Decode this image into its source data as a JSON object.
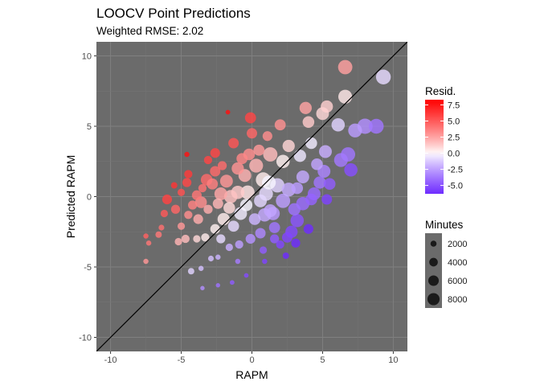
{
  "chart_data": {
    "type": "scatter",
    "title": "LOOCV Point Predictions",
    "subtitle": "Weighted RMSE: 2.02",
    "xlabel": "RAPM",
    "ylabel": "Predicted RAPM",
    "xlim": [
      -11,
      11
    ],
    "ylim": [
      -11,
      11
    ],
    "x_ticks": [
      -10,
      -5,
      0,
      5,
      10
    ],
    "y_ticks": [
      -10,
      -5,
      0,
      5,
      10
    ],
    "grid": true,
    "reference_line": "y = x",
    "panel_background": "#6b6b6b",
    "legend_position": "right",
    "color_legend": {
      "title": "Resid.",
      "ticks": [
        7.5,
        5.0,
        2.5,
        0.0,
        -2.5,
        -5.0
      ],
      "tick_labels": [
        "7.5",
        "5.0",
        "2.5",
        "0.0",
        "-2.5",
        "-5.0"
      ],
      "range": [
        -6.3,
        8.3
      ],
      "low_color": "#6f2cff",
      "mid_color": "#ffffff",
      "high_color": "#ff0000"
    },
    "size_legend": {
      "title": "Minutes",
      "values": [
        2000,
        4000,
        6000,
        8000
      ],
      "labels": [
        "2000",
        "4000",
        "6000",
        "8000"
      ]
    },
    "points": [
      {
        "x": 9.3,
        "y": 8.5,
        "minutes": 8000
      },
      {
        "x": 6.6,
        "y": 9.2,
        "minutes": 7500
      },
      {
        "x": 6.6,
        "y": 7.1,
        "minutes": 7000
      },
      {
        "x": 5.3,
        "y": 6.4,
        "minutes": 5500
      },
      {
        "x": 5.0,
        "y": 5.9,
        "minutes": 6000
      },
      {
        "x": 3.8,
        "y": 6.3,
        "minutes": 5500
      },
      {
        "x": 8.0,
        "y": 5.0,
        "minutes": 8500
      },
      {
        "x": 8.8,
        "y": 5.0,
        "minutes": 8000
      },
      {
        "x": 7.3,
        "y": 4.7,
        "minutes": 7000
      },
      {
        "x": 6.1,
        "y": 5.1,
        "minutes": 6500
      },
      {
        "x": 6.8,
        "y": 3.0,
        "minutes": 7500
      },
      {
        "x": 5.2,
        "y": 3.2,
        "minutes": 6000
      },
      {
        "x": 4.6,
        "y": 2.3,
        "minutes": 5000
      },
      {
        "x": 6.3,
        "y": 2.6,
        "minutes": 7000
      },
      {
        "x": 7.0,
        "y": 1.9,
        "minutes": 6500
      },
      {
        "x": 3.6,
        "y": 1.4,
        "minutes": 6000
      },
      {
        "x": 4.8,
        "y": 1.0,
        "minutes": 5500
      },
      {
        "x": 3.2,
        "y": 0.6,
        "minutes": 5000
      },
      {
        "x": 5.5,
        "y": 0.9,
        "minutes": 5000
      },
      {
        "x": 2.6,
        "y": 0.5,
        "minutes": 7000
      },
      {
        "x": 4.2,
        "y": 3.8,
        "minutes": 5000
      },
      {
        "x": 2.2,
        "y": 2.5,
        "minutes": 6500
      },
      {
        "x": 2.6,
        "y": 3.6,
        "minutes": 5500
      },
      {
        "x": 4.0,
        "y": 5.3,
        "minutes": 5000
      },
      {
        "x": 2.0,
        "y": 5.1,
        "minutes": 4500
      },
      {
        "x": 1.3,
        "y": 3.0,
        "minutes": 7500
      },
      {
        "x": 0.3,
        "y": 2.2,
        "minutes": 7000
      },
      {
        "x": 0.8,
        "y": 1.2,
        "minutes": 8000
      },
      {
        "x": 1.8,
        "y": 0.8,
        "minutes": 7500
      },
      {
        "x": -0.5,
        "y": 1.5,
        "minutes": 6000
      },
      {
        "x": 0.0,
        "y": 4.5,
        "minutes": 4000
      },
      {
        "x": -0.2,
        "y": 3.0,
        "minutes": 5000
      },
      {
        "x": -1.0,
        "y": 2.0,
        "minutes": 5500
      },
      {
        "x": -1.8,
        "y": 1.1,
        "minutes": 6000
      },
      {
        "x": -1.0,
        "y": 0.3,
        "minutes": 6500
      },
      {
        "x": -0.1,
        "y": 5.6,
        "minutes": 4500
      },
      {
        "x": -1.3,
        "y": 3.8,
        "minutes": 4000
      },
      {
        "x": -2.1,
        "y": 2.2,
        "minutes": 3000
      },
      {
        "x": -2.6,
        "y": 3.1,
        "minutes": 3500
      },
      {
        "x": -3.1,
        "y": 2.6,
        "minutes": 2500
      },
      {
        "x": -2.8,
        "y": 0.9,
        "minutes": 4500
      },
      {
        "x": -4.5,
        "y": 1.6,
        "minutes": 2500
      },
      {
        "x": -4.6,
        "y": 1.0,
        "minutes": 3000
      },
      {
        "x": -3.5,
        "y": 0.6,
        "minutes": 2500
      },
      {
        "x": -5.0,
        "y": 0.3,
        "minutes": 2000
      },
      {
        "x": -6.0,
        "y": -0.2,
        "minutes": 3500
      },
      {
        "x": -5.4,
        "y": -0.9,
        "minutes": 3000
      },
      {
        "x": -4.5,
        "y": -1.3,
        "minutes": 2500
      },
      {
        "x": -5.0,
        "y": -2.1,
        "minutes": 2000
      },
      {
        "x": -6.2,
        "y": -1.2,
        "minutes": 2000
      },
      {
        "x": -3.8,
        "y": -1.6,
        "minutes": 3500
      },
      {
        "x": -3.1,
        "y": -0.9,
        "minutes": 3000
      },
      {
        "x": -2.4,
        "y": -0.5,
        "minutes": 4000
      },
      {
        "x": -1.6,
        "y": -0.8,
        "minutes": 5000
      },
      {
        "x": -0.4,
        "y": -0.6,
        "minutes": 5500
      },
      {
        "x": 0.6,
        "y": -0.3,
        "minutes": 6000
      },
      {
        "x": -2.6,
        "y": -2.3,
        "minutes": 3500
      },
      {
        "x": -3.3,
        "y": -2.9,
        "minutes": 2500
      },
      {
        "x": -3.9,
        "y": -3.0,
        "minutes": 2000
      },
      {
        "x": -2.2,
        "y": -3.0,
        "minutes": 3000
      },
      {
        "x": -1.3,
        "y": -2.1,
        "minutes": 4500
      },
      {
        "x": 0.2,
        "y": -1.6,
        "minutes": 5000
      },
      {
        "x": 1.3,
        "y": -1.0,
        "minutes": 6000
      },
      {
        "x": 3.0,
        "y": -0.9,
        "minutes": 5500
      },
      {
        "x": 3.2,
        "y": -1.7,
        "minutes": 6500
      },
      {
        "x": 4.2,
        "y": -0.2,
        "minutes": 5000
      },
      {
        "x": 5.3,
        "y": -0.2,
        "minutes": 4000
      },
      {
        "x": 2.8,
        "y": -2.5,
        "minutes": 5500
      },
      {
        "x": 1.6,
        "y": -2.2,
        "minutes": 4500
      },
      {
        "x": 0.6,
        "y": -2.6,
        "minutes": 4000
      },
      {
        "x": -0.1,
        "y": -3.0,
        "minutes": 3500
      },
      {
        "x": -0.9,
        "y": -3.4,
        "minutes": 2500
      },
      {
        "x": 1.6,
        "y": -3.0,
        "minutes": 3000
      },
      {
        "x": 2.0,
        "y": -3.4,
        "minutes": 2500
      },
      {
        "x": 0.8,
        "y": -3.8,
        "minutes": 2000
      },
      {
        "x": -1.6,
        "y": -3.6,
        "minutes": 2000
      },
      {
        "x": -1.0,
        "y": -4.6,
        "minutes": 1000
      },
      {
        "x": 0.9,
        "y": -4.6,
        "minutes": 1000
      },
      {
        "x": -0.4,
        "y": -5.6,
        "minutes": 800
      },
      {
        "x": -2.4,
        "y": -4.3,
        "minutes": 1000
      },
      {
        "x": -2.9,
        "y": -4.4,
        "minutes": 1200
      },
      {
        "x": -4.3,
        "y": -5.3,
        "minutes": 1500
      },
      {
        "x": -3.6,
        "y": -5.1,
        "minutes": 1000
      },
      {
        "x": -1.4,
        "y": -6.1,
        "minutes": 800
      },
      {
        "x": -3.5,
        "y": -6.5,
        "minutes": 700
      },
      {
        "x": -2.4,
        "y": -6.3,
        "minutes": 700
      },
      {
        "x": -7.5,
        "y": -2.8,
        "minutes": 1000
      },
      {
        "x": -7.5,
        "y": -4.6,
        "minutes": 1000
      },
      {
        "x": -7.3,
        "y": -3.3,
        "minutes": 1000
      },
      {
        "x": -6.4,
        "y": -2.2,
        "minutes": 1200
      },
      {
        "x": -6.6,
        "y": -2.7,
        "minutes": 1500
      },
      {
        "x": -5.2,
        "y": -3.2,
        "minutes": 2000
      },
      {
        "x": -4.7,
        "y": -3.0,
        "minutes": 2500
      },
      {
        "x": -1.7,
        "y": 6.0,
        "minutes": 800
      },
      {
        "x": -4.6,
        "y": 3.0,
        "minutes": 1000
      },
      {
        "x": -5.5,
        "y": 0.8,
        "minutes": 1500
      },
      {
        "x": 2.4,
        "y": -4.2,
        "minutes": 1500
      },
      {
        "x": 3.1,
        "y": -3.3,
        "minutes": 3000
      },
      {
        "x": 2.5,
        "y": -2.9,
        "minutes": 4000
      },
      {
        "x": 1.5,
        "y": -1.2,
        "minutes": 6500
      },
      {
        "x": 1.0,
        "y": 0.2,
        "minutes": 7000
      },
      {
        "x": -0.3,
        "y": 0.3,
        "minutes": 7000
      },
      {
        "x": -1.5,
        "y": 0.0,
        "minutes": 6500
      },
      {
        "x": -2.2,
        "y": 0.2,
        "minutes": 6000
      },
      {
        "x": -3.6,
        "y": -0.4,
        "minutes": 5000
      },
      {
        "x": -3.2,
        "y": 1.2,
        "minutes": 5000
      },
      {
        "x": 1.2,
        "y": 1.0,
        "minutes": 7000
      },
      {
        "x": 2.2,
        "y": -0.3,
        "minutes": 7500
      },
      {
        "x": 3.6,
        "y": -0.5,
        "minutes": 6500
      },
      {
        "x": 4.4,
        "y": 0.2,
        "minutes": 6000
      },
      {
        "x": 0.5,
        "y": 3.3,
        "minutes": 4500
      },
      {
        "x": -0.7,
        "y": 2.7,
        "minutes": 4500
      },
      {
        "x": 3.4,
        "y": 2.9,
        "minutes": 5500
      },
      {
        "x": 1.1,
        "y": 4.3,
        "minutes": 3500
      },
      {
        "x": -2.6,
        "y": 1.8,
        "minutes": 4000
      },
      {
        "x": -3.9,
        "y": 0.1,
        "minutes": 3500
      },
      {
        "x": -4.2,
        "y": -0.6,
        "minutes": 3000
      },
      {
        "x": -2.0,
        "y": -1.6,
        "minutes": 5500
      },
      {
        "x": -0.8,
        "y": -1.2,
        "minutes": 6000
      },
      {
        "x": 0.9,
        "y": -1.3,
        "minutes": 6500
      },
      {
        "x": 4.0,
        "y": -2.3,
        "minutes": 3500
      },
      {
        "x": 5.1,
        "y": 1.8,
        "minutes": 6000
      }
    ]
  }
}
